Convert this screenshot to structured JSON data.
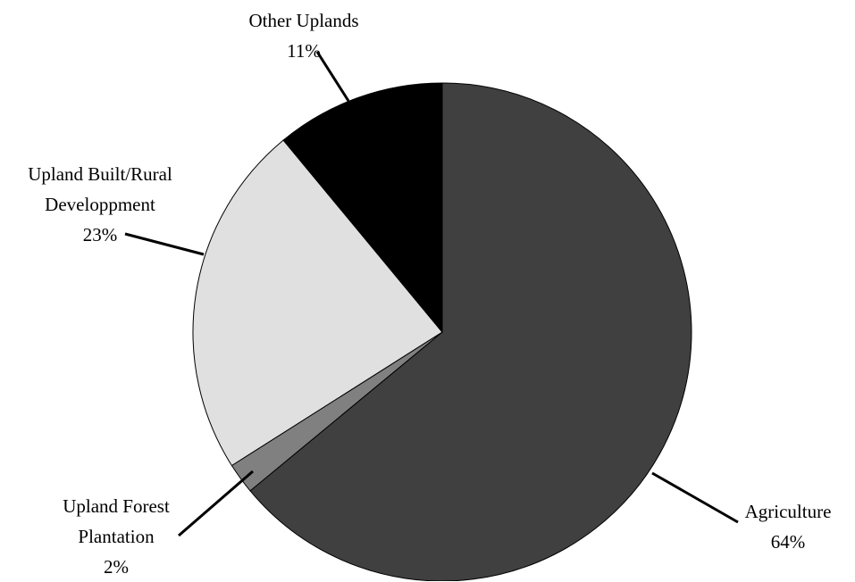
{
  "chart_data": {
    "type": "pie",
    "categories": [
      "Agriculture",
      "Upland Forest Plantation",
      "Upland Built/Rural Developpment",
      "Other Uplands"
    ],
    "values": [
      64,
      2,
      23,
      11
    ],
    "value_labels": [
      "64%",
      "2%",
      "23%",
      "11%"
    ],
    "colors": [
      "#404040",
      "#808080",
      "#e0e0e0",
      "#000000"
    ]
  }
}
